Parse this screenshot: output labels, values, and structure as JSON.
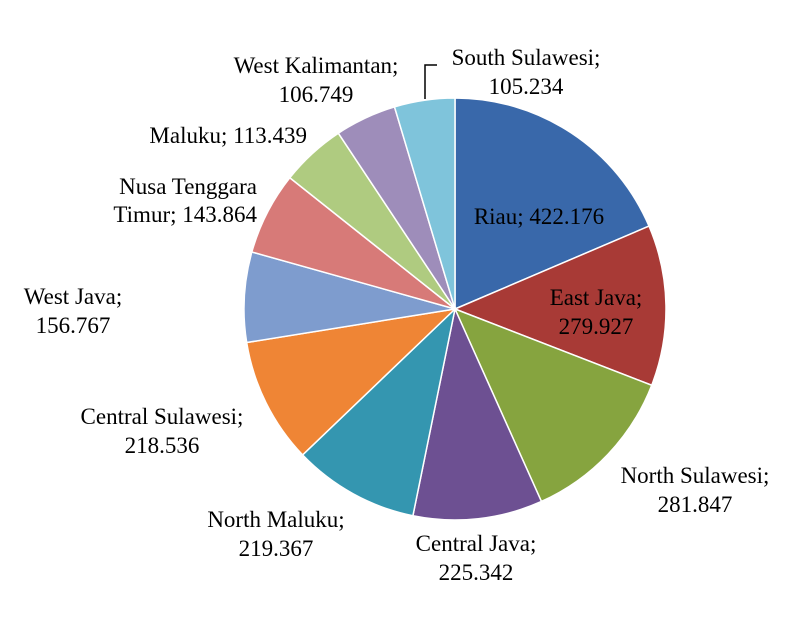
{
  "chart_data": {
    "type": "pie",
    "title": "",
    "slices": [
      {
        "label": "Riau",
        "value": 422.176,
        "display": "422.176",
        "color": "#3968AA"
      },
      {
        "label": "East Java",
        "value": 279.927,
        "display": "279.927",
        "color": "#A83A36"
      },
      {
        "label": "North Sulawesi",
        "value": 281.847,
        "display": "281.847",
        "color": "#86A43F"
      },
      {
        "label": "Central Java",
        "value": 225.342,
        "display": "225.342",
        "color": "#6D5092"
      },
      {
        "label": "North Maluku",
        "value": 219.367,
        "display": "219.367",
        "color": "#3496B0"
      },
      {
        "label": "Central Sulawesi",
        "value": 218.536,
        "display": "218.536",
        "color": "#EF8535"
      },
      {
        "label": "West Java",
        "value": 156.767,
        "display": "156.767",
        "color": "#7E9CCE"
      },
      {
        "label": "Nusa Tenggara Timur",
        "value": 143.864,
        "display": "143.864",
        "color": "#D77A78"
      },
      {
        "label": "Maluku",
        "value": 113.439,
        "display": "113.439",
        "color": "#AFCB80"
      },
      {
        "label": "West Kalimantan",
        "value": 106.749,
        "display": "106.749",
        "color": "#9E8DBA"
      },
      {
        "label": "South Sulawesi",
        "value": 105.234,
        "display": "105.234",
        "color": "#7FC4DB"
      }
    ]
  }
}
